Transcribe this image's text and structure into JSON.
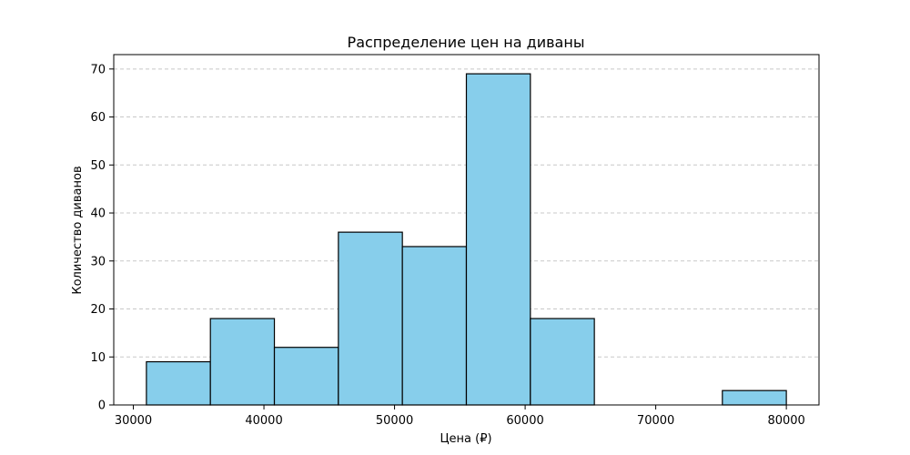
{
  "chart_data": {
    "type": "bar",
    "title": "Распределение цен на диваны",
    "xlabel": "Цена (₽)",
    "ylabel": "Количество диванов",
    "xlim": [
      28500,
      82500
    ],
    "ylim": [
      0,
      73
    ],
    "x_ticks": [
      30000,
      40000,
      50000,
      60000,
      70000,
      80000
    ],
    "y_ticks": [
      0,
      10,
      20,
      30,
      40,
      50,
      60,
      70
    ],
    "grid": "y-dashed",
    "bar_color": "#87ceeb",
    "edge_color": "#000000",
    "grid_color": "#c8c8c8",
    "bins": [
      {
        "start": 31000,
        "end": 35900,
        "value": 9
      },
      {
        "start": 35900,
        "end": 40800,
        "value": 18
      },
      {
        "start": 40800,
        "end": 45700,
        "value": 12
      },
      {
        "start": 45700,
        "end": 50600,
        "value": 36
      },
      {
        "start": 50600,
        "end": 55500,
        "value": 33
      },
      {
        "start": 55500,
        "end": 60400,
        "value": 69
      },
      {
        "start": 60400,
        "end": 65300,
        "value": 18
      },
      {
        "start": 65300,
        "end": 70200,
        "value": 0
      },
      {
        "start": 70200,
        "end": 75100,
        "value": 0
      },
      {
        "start": 75100,
        "end": 80000,
        "value": 3
      }
    ]
  }
}
